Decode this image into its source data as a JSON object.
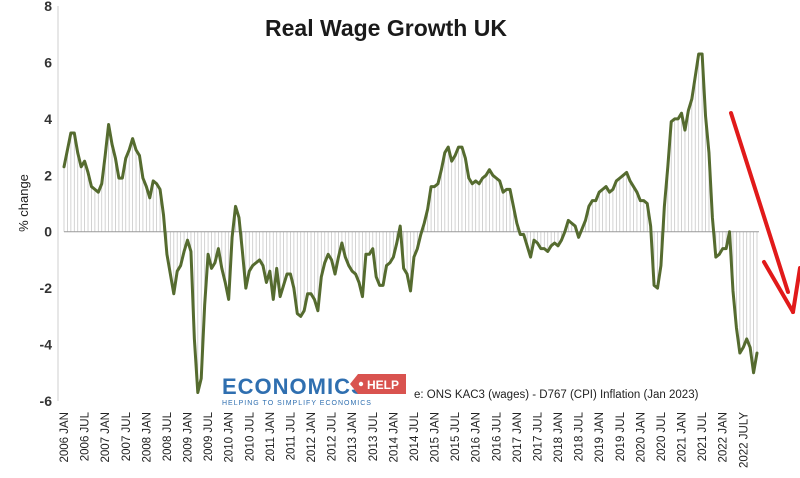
{
  "chart_data": {
    "type": "line",
    "title": "Real Wage Growth UK",
    "xlabel": "",
    "ylabel": "% change",
    "ylim": [
      -6,
      8
    ],
    "yticks": [
      8,
      6,
      4,
      2,
      0,
      -2,
      -4,
      -6
    ],
    "grid": false,
    "line_color": "#556b2f",
    "drop_line_color": "#c8c8c8",
    "x_tick_labels": [
      "2006 JAN",
      "2006 JUL",
      "2007 JAN",
      "2007 JUL",
      "2008 JAN",
      "2008 JUL",
      "2009 JAN",
      "2009 JUL",
      "2010 JAN",
      "2010 JUL",
      "2011 JAN",
      "2011 JUL",
      "2012 JAN",
      "2012 JUL",
      "2013 JAN",
      "2013 JUL",
      "2014 JAN",
      "2014 JUL",
      "2015 JAN",
      "2015 JUL",
      "2016 JAN",
      "2016 JUL",
      "2017 JAN",
      "2017 JUL",
      "2018 JAN",
      "2018 JUL",
      "2019 JAN",
      "2019 JUL",
      "2020 JAN",
      "2020 JUL",
      "2021 JAN",
      "2021 JUL",
      "2022 JAN",
      "2022 JULY"
    ],
    "series": [
      {
        "values": [
          2.3,
          2.9,
          3.5,
          3.5,
          2.8,
          2.3,
          2.5,
          2.1,
          1.6,
          1.5,
          1.4,
          1.7,
          2.7,
          3.8,
          3.1,
          2.6,
          1.9,
          1.9,
          2.6,
          2.9,
          3.3,
          2.9,
          2.7,
          1.9,
          1.6,
          1.2,
          1.8,
          1.7,
          1.5,
          0.6,
          -0.8,
          -1.5,
          -2.2,
          -1.4,
          -1.2,
          -0.7,
          -0.3,
          -0.7,
          -3.8,
          -5.7,
          -5.2,
          -2.6,
          -0.8,
          -1.3,
          -1.1,
          -0.6,
          -1.3,
          -1.8,
          -2.4,
          -0.2,
          0.9,
          0.5,
          -0.7,
          -2.0,
          -1.4,
          -1.2,
          -1.1,
          -1.0,
          -1.2,
          -1.8,
          -1.4,
          -2.4,
          -1.3,
          -2.3,
          -1.9,
          -1.5,
          -1.5,
          -2.0,
          -2.9,
          -3.0,
          -2.8,
          -2.2,
          -2.2,
          -2.4,
          -2.8,
          -1.6,
          -1.1,
          -0.8,
          -1.0,
          -1.5,
          -0.9,
          -0.4,
          -0.9,
          -1.2,
          -1.4,
          -1.5,
          -1.8,
          -2.3,
          -0.8,
          -0.8,
          -0.6,
          -1.6,
          -1.9,
          -1.9,
          -1.2,
          -1.1,
          -0.9,
          -0.4,
          0.2,
          -1.3,
          -1.5,
          -2.1,
          -0.9,
          -0.6,
          -0.1,
          0.3,
          0.8,
          1.6,
          1.6,
          1.7,
          2.2,
          2.8,
          3.0,
          2.5,
          2.7,
          3.0,
          3.0,
          2.6,
          1.9,
          1.7,
          1.8,
          1.7,
          1.9,
          2.0,
          2.2,
          2.0,
          1.9,
          1.8,
          1.4,
          1.5,
          1.5,
          0.9,
          0.3,
          -0.1,
          -0.1,
          -0.5,
          -0.9,
          -0.3,
          -0.4,
          -0.6,
          -0.6,
          -0.7,
          -0.5,
          -0.4,
          -0.5,
          -0.3,
          0.0,
          0.4,
          0.3,
          0.2,
          -0.2,
          0.1,
          0.4,
          0.9,
          1.1,
          1.1,
          1.4,
          1.5,
          1.6,
          1.4,
          1.5,
          1.8,
          1.9,
          2.0,
          2.1,
          1.8,
          1.6,
          1.4,
          1.1,
          1.1,
          1.0,
          0.2,
          -1.9,
          -2.0,
          -1.2,
          0.9,
          2.3,
          3.9,
          4.0,
          4.0,
          4.2,
          3.6,
          4.3,
          4.7,
          5.5,
          6.3,
          6.3,
          4.1,
          2.8,
          0.5,
          -0.9,
          -0.8,
          -0.6,
          -0.6,
          0.0,
          -2.1,
          -3.4,
          -4.3,
          -4.1,
          -3.8,
          -4.1,
          -5.0,
          -4.3
        ]
      }
    ],
    "source_text": "e: ONS KAC3 (wages) - D767 (CPI) Inflation (Jan 2023)",
    "annotations": [
      {
        "kind": "arrow",
        "color": "#e11a1a",
        "direction": "down-right"
      }
    ]
  },
  "logo": {
    "main_text": "ECONOMICS",
    "badge_text": "HELP",
    "tagline": "HELPING TO SIMPLIFY ECONOMICS",
    "colors": {
      "blue": "#2f6fb0",
      "red": "#d9534f"
    }
  }
}
